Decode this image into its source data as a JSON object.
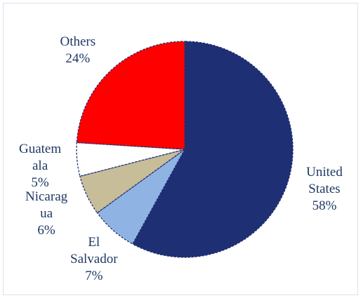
{
  "chart_data": {
    "type": "pie",
    "title": "",
    "slices": [
      {
        "name": "United States",
        "value": 58,
        "label_lines": [
          "United",
          "States"
        ],
        "pct_label": "58%",
        "color": "#1f2f73"
      },
      {
        "name": "El Salvador",
        "value": 7,
        "label_lines": [
          "El",
          "Salvador"
        ],
        "pct_label": "7%",
        "color": "#8fb4e3"
      },
      {
        "name": "Nicaragua",
        "value": 6,
        "label_lines": [
          "Nicarag",
          "ua"
        ],
        "pct_label": "6%",
        "color": "#c7bd98"
      },
      {
        "name": "Guatemala",
        "value": 5,
        "label_lines": [
          "Guatem",
          "ala"
        ],
        "pct_label": "5%",
        "color": "#ffffff"
      },
      {
        "name": "Others",
        "value": 24,
        "label_lines": [
          "Others"
        ],
        "pct_label": "24%",
        "color": "#ff0000"
      }
    ],
    "start_angle_deg": 0,
    "direction": "clockwise",
    "legend": "none",
    "label_color": "#1f3864",
    "edge_color": "#1f2f73"
  }
}
